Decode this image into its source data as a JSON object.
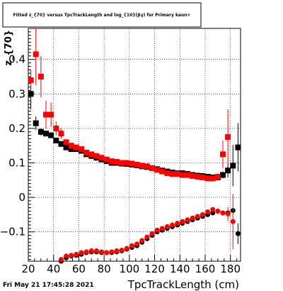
{
  "chart_data": {
    "type": "scatter",
    "title": "Fitted z_{70} versus TpcTrackLength and log_{10}(βγ) for Primary kaon+",
    "xlabel": "TpcTrackLength (cm)",
    "ylabel": "z_{70}",
    "xlim": [
      20,
      188
    ],
    "ylim": [
      -0.185,
      0.49
    ],
    "x_ticks": [
      20,
      40,
      60,
      80,
      100,
      120,
      140,
      160,
      180
    ],
    "y_ticks": [
      -0.1,
      0,
      0.1,
      0.2,
      0.3,
      0.4
    ],
    "y_tick_labels": [
      "−0.1",
      "0",
      "0.1",
      "0.2",
      "0.3",
      "0.4"
    ],
    "grid": true,
    "timestamp": "Fri May 21 17:45:28 2021",
    "colors": {
      "red": "#ff0000",
      "black": "#000000"
    },
    "series": [
      {
        "name": "",
        "color": "#000000",
        "marker": "square",
        "points": [
          {
            "x": 22,
            "y": 0.3,
            "yerr": 0.045
          },
          {
            "x": 26,
            "y": 0.215,
            "yerr": 0.02
          },
          {
            "x": 30,
            "y": 0.19,
            "yerr": 0.01
          },
          {
            "x": 34,
            "y": 0.185
          },
          {
            "x": 38,
            "y": 0.18
          },
          {
            "x": 42,
            "y": 0.165
          },
          {
            "x": 46,
            "y": 0.155
          },
          {
            "x": 50,
            "y": 0.145
          },
          {
            "x": 54,
            "y": 0.14
          },
          {
            "x": 58,
            "y": 0.14
          },
          {
            "x": 62,
            "y": 0.135
          },
          {
            "x": 66,
            "y": 0.125
          },
          {
            "x": 70,
            "y": 0.12
          },
          {
            "x": 74,
            "y": 0.115
          },
          {
            "x": 78,
            "y": 0.11
          },
          {
            "x": 82,
            "y": 0.105
          },
          {
            "x": 86,
            "y": 0.1
          },
          {
            "x": 90,
            "y": 0.1
          },
          {
            "x": 94,
            "y": 0.098
          },
          {
            "x": 98,
            "y": 0.097
          },
          {
            "x": 102,
            "y": 0.095
          },
          {
            "x": 106,
            "y": 0.093
          },
          {
            "x": 110,
            "y": 0.09
          },
          {
            "x": 114,
            "y": 0.088
          },
          {
            "x": 118,
            "y": 0.085
          },
          {
            "x": 122,
            "y": 0.082
          },
          {
            "x": 126,
            "y": 0.078
          },
          {
            "x": 130,
            "y": 0.075
          },
          {
            "x": 134,
            "y": 0.072
          },
          {
            "x": 138,
            "y": 0.07
          },
          {
            "x": 142,
            "y": 0.07
          },
          {
            "x": 146,
            "y": 0.068
          },
          {
            "x": 150,
            "y": 0.065
          },
          {
            "x": 154,
            "y": 0.063
          },
          {
            "x": 158,
            "y": 0.062
          },
          {
            "x": 162,
            "y": 0.06
          },
          {
            "x": 166,
            "y": 0.058
          },
          {
            "x": 170,
            "y": 0.058
          },
          {
            "x": 174,
            "y": 0.065,
            "yerr": 0.01
          },
          {
            "x": 178,
            "y": 0.078,
            "yerr": 0.02
          },
          {
            "x": 182,
            "y": 0.092,
            "yerr": 0.06
          },
          {
            "x": 186,
            "y": 0.145,
            "yerr": 0.07
          }
        ]
      },
      {
        "name": "",
        "color": "#ff0000",
        "marker": "square",
        "points": [
          {
            "x": 22,
            "y": 0.34,
            "yerr": 0.03
          },
          {
            "x": 26,
            "y": 0.415,
            "yerr": 0.09
          },
          {
            "x": 30,
            "y": 0.35,
            "yerr": 0.06
          },
          {
            "x": 34,
            "y": 0.24,
            "yerr": 0.04
          },
          {
            "x": 38,
            "y": 0.24,
            "yerr": 0.035
          },
          {
            "x": 42,
            "y": 0.2,
            "yerr": 0.02
          },
          {
            "x": 46,
            "y": 0.185,
            "yerr": 0.015
          },
          {
            "x": 50,
            "y": 0.16
          },
          {
            "x": 54,
            "y": 0.15
          },
          {
            "x": 58,
            "y": 0.145
          },
          {
            "x": 62,
            "y": 0.14
          },
          {
            "x": 66,
            "y": 0.13
          },
          {
            "x": 70,
            "y": 0.125
          },
          {
            "x": 74,
            "y": 0.12
          },
          {
            "x": 78,
            "y": 0.115
          },
          {
            "x": 82,
            "y": 0.11
          },
          {
            "x": 86,
            "y": 0.105
          },
          {
            "x": 90,
            "y": 0.103
          },
          {
            "x": 94,
            "y": 0.1
          },
          {
            "x": 98,
            "y": 0.1
          },
          {
            "x": 102,
            "y": 0.098
          },
          {
            "x": 106,
            "y": 0.095
          },
          {
            "x": 110,
            "y": 0.092
          },
          {
            "x": 114,
            "y": 0.09
          },
          {
            "x": 118,
            "y": 0.085
          },
          {
            "x": 122,
            "y": 0.08
          },
          {
            "x": 126,
            "y": 0.075
          },
          {
            "x": 130,
            "y": 0.07
          },
          {
            "x": 134,
            "y": 0.068
          },
          {
            "x": 138,
            "y": 0.068
          },
          {
            "x": 142,
            "y": 0.065
          },
          {
            "x": 146,
            "y": 0.065
          },
          {
            "x": 150,
            "y": 0.062
          },
          {
            "x": 154,
            "y": 0.06
          },
          {
            "x": 158,
            "y": 0.058
          },
          {
            "x": 162,
            "y": 0.055
          },
          {
            "x": 166,
            "y": 0.055
          },
          {
            "x": 170,
            "y": 0.06
          },
          {
            "x": 174,
            "y": 0.125,
            "yerr": 0.04
          },
          {
            "x": 178,
            "y": 0.175,
            "yerr": 0.08
          }
        ]
      },
      {
        "name": "",
        "color": "#000000",
        "marker": "circle",
        "points": [
          {
            "x": 46,
            "y": -0.185
          },
          {
            "x": 50,
            "y": -0.175
          },
          {
            "x": 54,
            "y": -0.17
          },
          {
            "x": 58,
            "y": -0.168
          },
          {
            "x": 62,
            "y": -0.165
          },
          {
            "x": 66,
            "y": -0.16
          },
          {
            "x": 70,
            "y": -0.158
          },
          {
            "x": 74,
            "y": -0.158
          },
          {
            "x": 78,
            "y": -0.16
          },
          {
            "x": 82,
            "y": -0.16
          },
          {
            "x": 86,
            "y": -0.16
          },
          {
            "x": 90,
            "y": -0.158
          },
          {
            "x": 94,
            "y": -0.155
          },
          {
            "x": 98,
            "y": -0.15
          },
          {
            "x": 102,
            "y": -0.145
          },
          {
            "x": 106,
            "y": -0.14
          },
          {
            "x": 110,
            "y": -0.13
          },
          {
            "x": 114,
            "y": -0.12
          },
          {
            "x": 118,
            "y": -0.11
          },
          {
            "x": 122,
            "y": -0.1
          },
          {
            "x": 126,
            "y": -0.095
          },
          {
            "x": 130,
            "y": -0.09
          },
          {
            "x": 134,
            "y": -0.085
          },
          {
            "x": 138,
            "y": -0.08
          },
          {
            "x": 142,
            "y": -0.075
          },
          {
            "x": 146,
            "y": -0.07
          },
          {
            "x": 150,
            "y": -0.065
          },
          {
            "x": 154,
            "y": -0.06
          },
          {
            "x": 158,
            "y": -0.055
          },
          {
            "x": 162,
            "y": -0.05
          },
          {
            "x": 166,
            "y": -0.045
          },
          {
            "x": 170,
            "y": -0.04
          },
          {
            "x": 174,
            "y": -0.045
          },
          {
            "x": 178,
            "y": -0.045
          },
          {
            "x": 182,
            "y": -0.038
          },
          {
            "x": 186,
            "y": -0.105,
            "yerr": 0.03
          }
        ]
      },
      {
        "name": "",
        "color": "#ff0000",
        "marker": "circle",
        "points": [
          {
            "x": 42,
            "y": -0.2
          },
          {
            "x": 46,
            "y": -0.18
          },
          {
            "x": 50,
            "y": -0.17
          },
          {
            "x": 54,
            "y": -0.168
          },
          {
            "x": 58,
            "y": -0.165
          },
          {
            "x": 62,
            "y": -0.16
          },
          {
            "x": 66,
            "y": -0.158
          },
          {
            "x": 70,
            "y": -0.155
          },
          {
            "x": 74,
            "y": -0.155
          },
          {
            "x": 78,
            "y": -0.158
          },
          {
            "x": 82,
            "y": -0.16
          },
          {
            "x": 86,
            "y": -0.158
          },
          {
            "x": 90,
            "y": -0.155
          },
          {
            "x": 94,
            "y": -0.153
          },
          {
            "x": 98,
            "y": -0.148
          },
          {
            "x": 102,
            "y": -0.14
          },
          {
            "x": 106,
            "y": -0.135
          },
          {
            "x": 110,
            "y": -0.125
          },
          {
            "x": 114,
            "y": -0.115
          },
          {
            "x": 118,
            "y": -0.105
          },
          {
            "x": 122,
            "y": -0.095
          },
          {
            "x": 126,
            "y": -0.09
          },
          {
            "x": 130,
            "y": -0.085
          },
          {
            "x": 134,
            "y": -0.08
          },
          {
            "x": 138,
            "y": -0.075
          },
          {
            "x": 142,
            "y": -0.07
          },
          {
            "x": 146,
            "y": -0.065
          },
          {
            "x": 150,
            "y": -0.06
          },
          {
            "x": 154,
            "y": -0.055
          },
          {
            "x": 158,
            "y": -0.05
          },
          {
            "x": 162,
            "y": -0.042
          },
          {
            "x": 166,
            "y": -0.035
          },
          {
            "x": 170,
            "y": -0.04
          },
          {
            "x": 174,
            "y": -0.045
          },
          {
            "x": 178,
            "y": -0.048,
            "yerr": 0.02
          },
          {
            "x": 182,
            "y": -0.07,
            "yerr": 0.08
          }
        ]
      }
    ]
  }
}
